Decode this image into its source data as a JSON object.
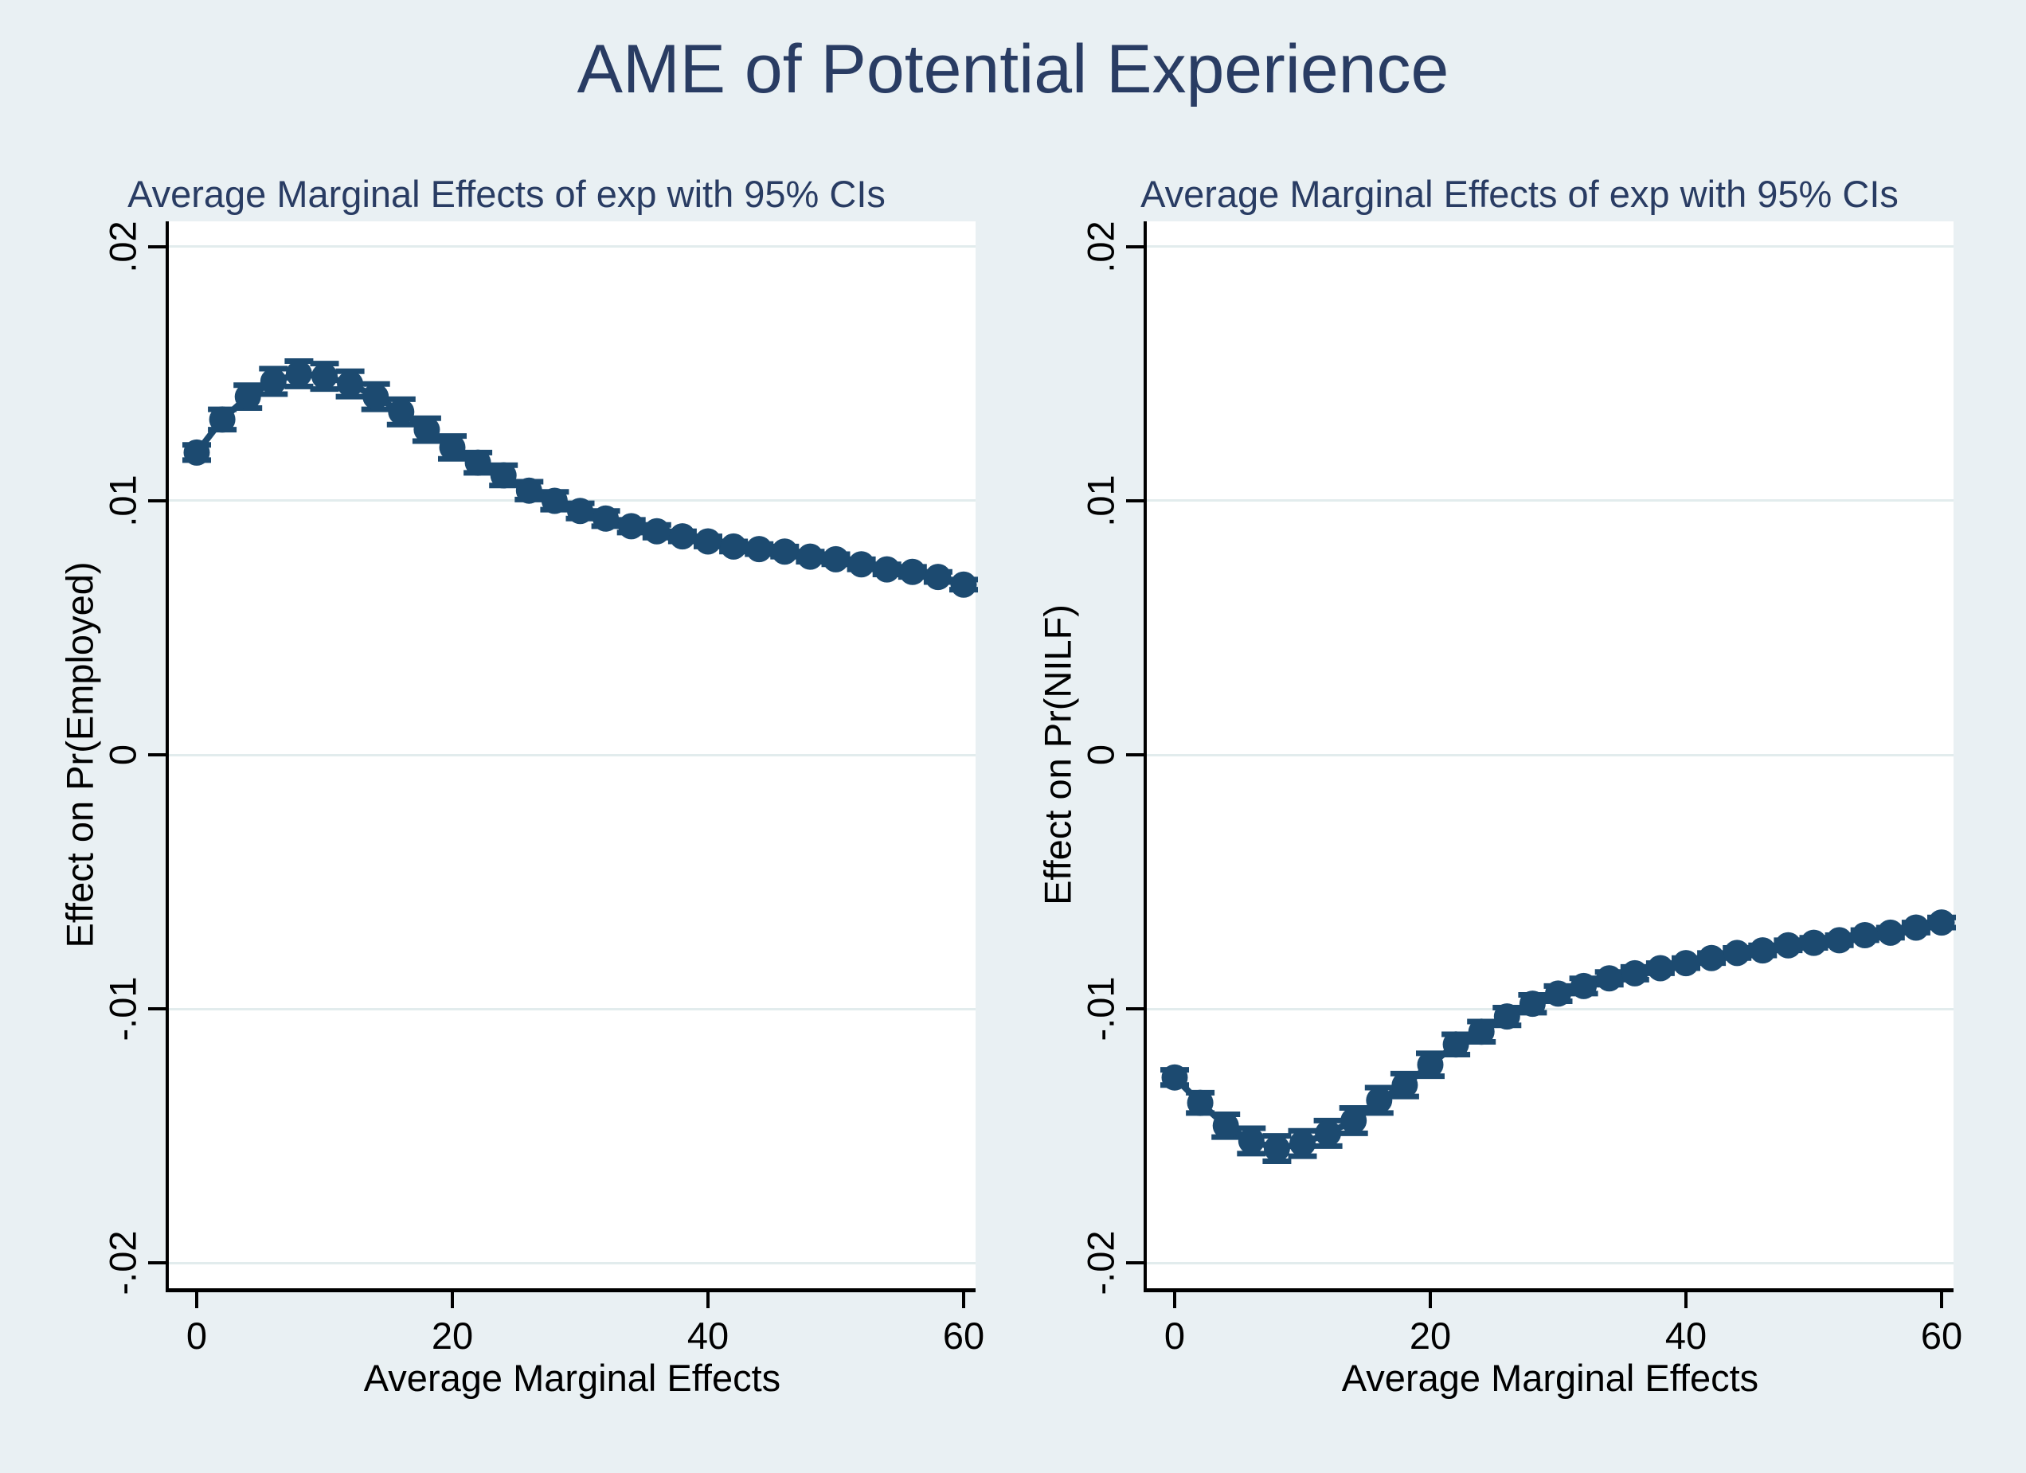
{
  "title": "AME of Potential Experience",
  "colors": {
    "background": "#e9f0f3",
    "plot_background": "#ffffff",
    "gridline": "#e2eced",
    "series": "#1c4a70",
    "title_text": "#293c63",
    "axis_text": "#000000"
  },
  "chart_data": [
    {
      "type": "line",
      "panel": "left",
      "subtitle": "Average Marginal Effects of exp with 95% CIs",
      "xlabel": "Average Marginal Effects",
      "ylabel": "Effect on Pr(Employed)",
      "legend": "none",
      "grid": "horizontal",
      "xlim": [
        -2.2,
        61
      ],
      "ylim": [
        -0.021,
        0.021
      ],
      "xticks": [
        {
          "value": 0,
          "label": "0"
        },
        {
          "value": 20,
          "label": "20"
        },
        {
          "value": 40,
          "label": "40"
        },
        {
          "value": 60,
          "label": "60"
        }
      ],
      "yticks": [
        {
          "value": 0.02,
          "label": ".02"
        },
        {
          "value": 0.01,
          "label": ".01"
        },
        {
          "value": 0,
          "label": "0"
        },
        {
          "value": -0.01,
          "label": "-.01"
        },
        {
          "value": -0.02,
          "label": "-.02"
        }
      ],
      "x": [
        0,
        2,
        4,
        6,
        8,
        10,
        12,
        14,
        16,
        18,
        20,
        22,
        24,
        26,
        28,
        30,
        32,
        34,
        36,
        38,
        40,
        42,
        44,
        46,
        48,
        50,
        52,
        54,
        56,
        58,
        60
      ],
      "y": [
        0.0119,
        0.0132,
        0.0141,
        0.0147,
        0.015,
        0.0149,
        0.0146,
        0.0141,
        0.0135,
        0.0128,
        0.0121,
        0.0115,
        0.011,
        0.0104,
        0.01,
        0.0096,
        0.0093,
        0.009,
        0.0088,
        0.0086,
        0.0084,
        0.0082,
        0.0081,
        0.008,
        0.0078,
        0.0077,
        0.0075,
        0.0073,
        0.0072,
        0.007,
        0.0067
      ],
      "ci_halfwidth": [
        0.0003,
        0.0004,
        0.00045,
        0.0005,
        0.0005,
        0.0005,
        0.0005,
        0.0005,
        0.0005,
        0.00045,
        0.00045,
        0.0004,
        0.0004,
        0.00035,
        0.00035,
        0.0003,
        0.0003,
        0.00025,
        0.00025,
        0.0002,
        0.0002,
        0.0002,
        0.0002,
        0.0002,
        0.0002,
        0.0002,
        0.0002,
        0.0002,
        0.0002,
        0.0002,
        0.0002
      ]
    },
    {
      "type": "line",
      "panel": "right",
      "subtitle": "Average Marginal Effects of exp with 95% CIs",
      "xlabel": "Average Marginal Effects",
      "ylabel": "Effect on Pr(NILF)",
      "legend": "none",
      "grid": "horizontal",
      "xlim": [
        -2.2,
        61
      ],
      "ylim": [
        -0.021,
        0.021
      ],
      "xticks": [
        {
          "value": 0,
          "label": "0"
        },
        {
          "value": 20,
          "label": "20"
        },
        {
          "value": 40,
          "label": "40"
        },
        {
          "value": 60,
          "label": "60"
        }
      ],
      "yticks": [
        {
          "value": 0.02,
          "label": ".02"
        },
        {
          "value": 0.01,
          "label": ".01"
        },
        {
          "value": 0,
          "label": "0"
        },
        {
          "value": -0.01,
          "label": "-.01"
        },
        {
          "value": -0.02,
          "label": "-.02"
        }
      ],
      "x": [
        0,
        2,
        4,
        6,
        8,
        10,
        12,
        14,
        16,
        18,
        20,
        22,
        24,
        26,
        28,
        30,
        32,
        34,
        36,
        38,
        40,
        42,
        44,
        46,
        48,
        50,
        52,
        54,
        56,
        58,
        60
      ],
      "y": [
        -0.0127,
        -0.0137,
        -0.0146,
        -0.0152,
        -0.0155,
        -0.0153,
        -0.0149,
        -0.0144,
        -0.0136,
        -0.013,
        -0.0122,
        -0.0114,
        -0.0109,
        -0.0103,
        -0.0098,
        -0.0094,
        -0.0091,
        -0.0088,
        -0.0086,
        -0.0084,
        -0.0082,
        -0.008,
        -0.0078,
        -0.0077,
        -0.0075,
        -0.0074,
        -0.0073,
        -0.0071,
        -0.007,
        -0.0068,
        -0.0066
      ],
      "ci_halfwidth": [
        0.0003,
        0.0004,
        0.00045,
        0.0005,
        0.0005,
        0.0005,
        0.0005,
        0.0005,
        0.0005,
        0.00045,
        0.00045,
        0.0004,
        0.0004,
        0.00035,
        0.00035,
        0.0003,
        0.0003,
        0.00025,
        0.00025,
        0.0002,
        0.0002,
        0.0002,
        0.0002,
        0.0002,
        0.0002,
        0.0002,
        0.0002,
        0.0002,
        0.0002,
        0.0002,
        0.0002
      ]
    }
  ]
}
